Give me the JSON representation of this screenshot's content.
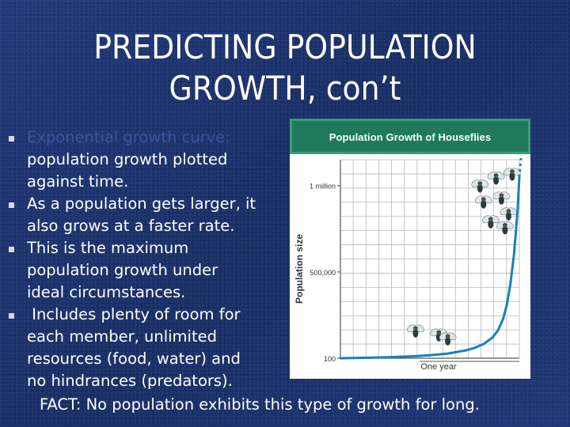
{
  "slide": {
    "title_line1": "PREDICTING POPULATION",
    "title_line2": "GROWTH, con’t",
    "bullets": [
      {
        "heading": "Exponential growth curve:",
        "lines": [
          "population growth plotted",
          "against time."
        ]
      },
      {
        "heading": "",
        "lines": [
          "As a population gets larger, it",
          "also grows at a faster rate."
        ]
      },
      {
        "heading": "",
        "lines": [
          "This is the maximum",
          "population growth under",
          "ideal circumstances."
        ]
      },
      {
        "heading": "",
        "lines": [
          " Includes plenty of room for",
          "each member, unlimited",
          "resources (food, water) and",
          "no hindrances (predators)."
        ]
      }
    ],
    "fact": "FACT:  No population exhibits this type of growth for long."
  },
  "colors": {
    "background": "#1d3470",
    "heading_text": "#3b559e",
    "chart_header": "#1f7a5c",
    "curve": "#1a7fb8"
  },
  "chart_data": {
    "type": "line",
    "title": "Population Growth of Houseflies",
    "ylabel": "Population size",
    "xlabel": "One year",
    "y_tick_labels": [
      "1 million",
      "500,000",
      "100"
    ],
    "y_tick_values": [
      1000000,
      500000,
      100
    ],
    "ylim": [
      0,
      1150000
    ],
    "grid": true,
    "icons": [
      "housefly-icon"
    ],
    "series": [
      {
        "x": [
          0,
          0.1,
          0.2,
          0.3,
          0.4,
          0.5,
          0.6,
          0.7,
          0.75,
          0.8,
          0.85,
          0.88,
          0.91,
          0.93,
          0.95,
          0.97,
          0.99,
          1.0
        ],
        "values": [
          100,
          2000,
          4000,
          7000,
          11000,
          17000,
          27000,
          45000,
          60000,
          82000,
          120000,
          160000,
          230000,
          310000,
          430000,
          600000,
          850000,
          1050000
        ]
      }
    ]
  }
}
